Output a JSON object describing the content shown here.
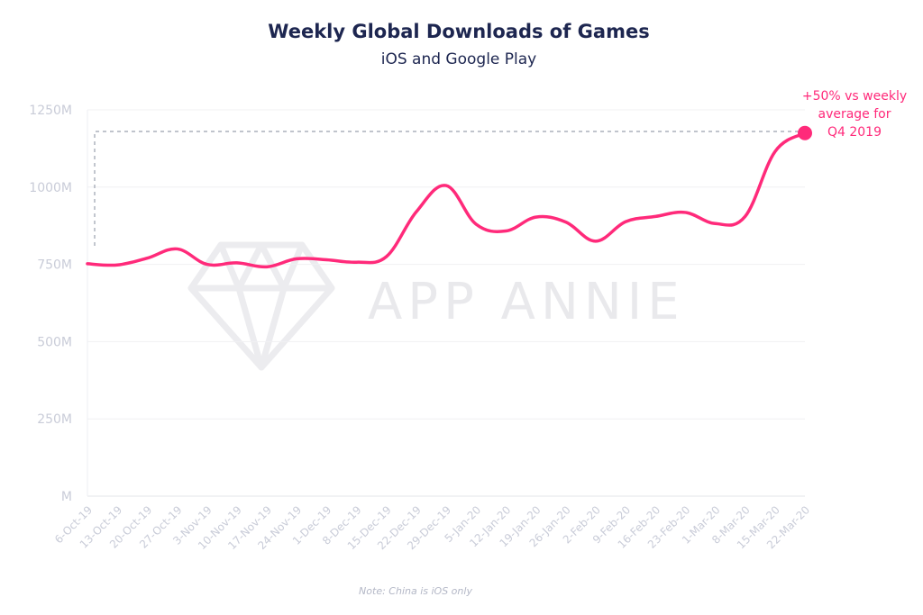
{
  "chart_data": {
    "type": "line",
    "title": "Weekly Global Downloads of Games",
    "subtitle": "iOS and Google Play",
    "note": "Note: China is iOS only",
    "watermark": "APP ANNIE",
    "categories": [
      "6-Oct-19",
      "13-Oct-19",
      "20-Oct-19",
      "27-Oct-19",
      "3-Nov-19",
      "10-Nov-19",
      "17-Nov-19",
      "24-Nov-19",
      "1-Dec-19",
      "8-Dec-19",
      "15-Dec-19",
      "22-Dec-19",
      "29-Dec-19",
      "5-Jan-20",
      "12-Jan-20",
      "19-Jan-20",
      "26-Jan-20",
      "2-Feb-20",
      "9-Feb-20",
      "16-Feb-20",
      "23-Feb-20",
      "1-Mar-20",
      "8-Mar-20",
      "15-Mar-20",
      "22-Mar-20"
    ],
    "series": [
      {
        "values": [
          752,
          748,
          770,
          800,
          750,
          755,
          742,
          768,
          765,
          757,
          775,
          920,
          1005,
          880,
          858,
          903,
          887,
          825,
          888,
          905,
          918,
          882,
          905,
          1115,
          1175
        ],
        "color": "#ff2a7a"
      }
    ],
    "yticks": [
      {
        "value": 1250,
        "label": "1250M"
      },
      {
        "value": 1000,
        "label": "1000M"
      },
      {
        "value": 750,
        "label": "750M"
      },
      {
        "value": 500,
        "label": "500M"
      },
      {
        "value": 250,
        "label": "250M"
      },
      {
        "value": 0,
        "label": "M"
      }
    ],
    "ylim": [
      0,
      1250
    ],
    "grid": true,
    "reference_line": {
      "value": 1180,
      "from_category": 0,
      "to_category": 24,
      "drop_to_value": 810
    },
    "annotation": {
      "lines": [
        "+50% vs weekly",
        "average for",
        "Q4 2019"
      ],
      "category": 24
    }
  }
}
